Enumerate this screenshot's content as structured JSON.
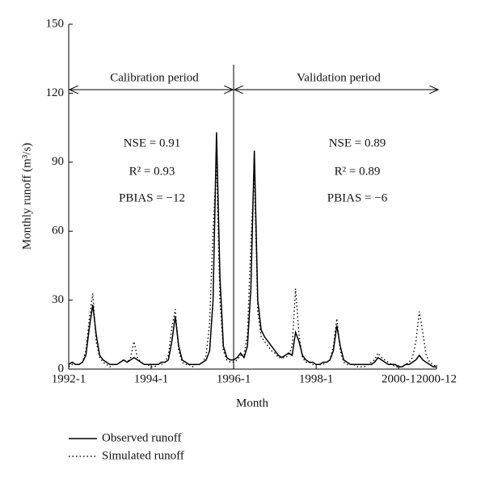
{
  "chart_data": {
    "type": "line",
    "x_label": "Month",
    "y_label": "Monthly runoff (m³/s)",
    "categories": [
      "1992-1",
      null,
      null,
      null,
      null,
      null,
      null,
      null,
      null,
      null,
      null,
      null,
      null,
      null,
      null,
      null,
      null,
      null,
      null,
      null,
      null,
      null,
      null,
      null,
      "1994-1",
      null,
      null,
      null,
      null,
      null,
      null,
      null,
      null,
      null,
      null,
      null,
      null,
      null,
      null,
      null,
      null,
      null,
      null,
      null,
      null,
      null,
      null,
      null,
      "1996-1",
      null,
      null,
      null,
      null,
      null,
      null,
      null,
      null,
      null,
      null,
      null,
      null,
      null,
      null,
      null,
      null,
      null,
      null,
      null,
      null,
      null,
      null,
      null,
      "1998-1",
      null,
      null,
      null,
      null,
      null,
      null,
      null,
      null,
      null,
      null,
      null,
      null,
      null,
      null,
      null,
      null,
      null,
      null,
      null,
      null,
      null,
      null,
      null,
      "2000-1",
      null,
      null,
      null,
      null,
      null,
      null,
      null,
      null,
      null,
      null,
      "2000-12"
    ],
    "series": [
      {
        "name": "Observed runoff",
        "color": "#000000",
        "style": "solid",
        "values": [
          2,
          3,
          2,
          2,
          3,
          6,
          18,
          28,
          15,
          6,
          4,
          3,
          2,
          2,
          2,
          3,
          4,
          3,
          4,
          5,
          4,
          3,
          2,
          2,
          2,
          2,
          2,
          3,
          3,
          4,
          12,
          23,
          10,
          4,
          3,
          2,
          2,
          2,
          2,
          3,
          4,
          8,
          30,
          103,
          40,
          10,
          5,
          4,
          4,
          5,
          7,
          5,
          10,
          35,
          95,
          30,
          17,
          14,
          12,
          10,
          8,
          6,
          5,
          6,
          7,
          6,
          16,
          12,
          6,
          4,
          3,
          3,
          2,
          2,
          3,
          3,
          4,
          8,
          19,
          10,
          4,
          3,
          2,
          2,
          2,
          2,
          2,
          2,
          2,
          3,
          5,
          4,
          3,
          2,
          2,
          2,
          1,
          1,
          2,
          2,
          3,
          4,
          6,
          4,
          3,
          2,
          1,
          1
        ]
      },
      {
        "name": "Simulated runoff",
        "color": "#000000",
        "style": "dotted",
        "values": [
          1,
          2,
          2,
          2,
          3,
          8,
          22,
          33,
          12,
          5,
          3,
          2,
          1,
          2,
          2,
          3,
          4,
          3,
          5,
          12,
          5,
          3,
          2,
          2,
          1,
          1,
          2,
          2,
          3,
          6,
          18,
          26,
          8,
          3,
          2,
          2,
          1,
          2,
          2,
          3,
          6,
          20,
          60,
          90,
          30,
          8,
          4,
          3,
          3,
          4,
          6,
          6,
          15,
          55,
          86,
          25,
          14,
          12,
          10,
          8,
          7,
          5,
          5,
          5,
          6,
          10,
          35,
          15,
          5,
          3,
          3,
          2,
          2,
          2,
          2,
          3,
          4,
          10,
          22,
          8,
          3,
          2,
          2,
          2,
          1,
          1,
          1,
          2,
          3,
          4,
          7,
          5,
          4,
          3,
          2,
          1,
          1,
          1,
          2,
          3,
          5,
          12,
          25,
          16,
          6,
          3,
          2,
          1
        ]
      }
    ],
    "ylim": [
      0,
      150
    ],
    "yticks": [
      0,
      30,
      60,
      90,
      120,
      150
    ],
    "periods": [
      "Calibration period",
      "Validation period"
    ],
    "annotations": [
      [
        "NSE = 0.91",
        "R² = 0.93",
        "PBIAS = −12"
      ],
      [
        "NSE = 0.89",
        "R² = 0.89",
        "PBIAS = −6"
      ]
    ]
  }
}
